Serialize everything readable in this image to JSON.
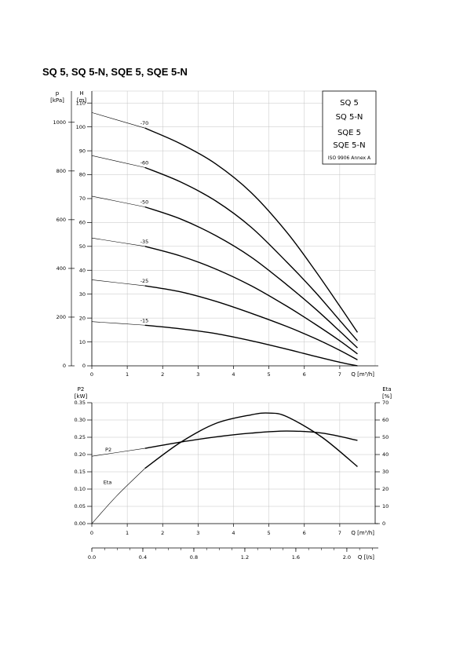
{
  "title": "SQ 5, SQ 5-N, SQE 5, SQE 5-N",
  "legend": {
    "lines": [
      "SQ 5",
      "SQ 5-N",
      "SQE 5",
      "SQE 5-N"
    ],
    "standard": "ISO 9906 Annex A"
  },
  "chart_data": [
    {
      "type": "line",
      "name": "head",
      "x_unit_label": "Q [m³/h]",
      "xlim": [
        0,
        8
      ],
      "x_ticks": [
        "0",
        "1",
        "2",
        "3",
        "4",
        "5",
        "6",
        "7"
      ],
      "y_left_label": [
        "H",
        "[m]"
      ],
      "ylim": [
        0,
        115
      ],
      "y_left_ticks": [
        "0",
        "10",
        "20",
        "30",
        "40",
        "50",
        "60",
        "70",
        "80",
        "90",
        "100",
        "110"
      ],
      "y_right_label": [
        "p",
        "[kPa]"
      ],
      "p_ticks": [
        "0",
        "200",
        "400",
        "600",
        "800",
        "1000"
      ],
      "grid": true,
      "series": [
        {
          "name": "-70",
          "label_x": 1.5,
          "x": [
            0,
            1.5,
            2.5,
            3.5,
            4.5,
            5.5,
            6.3,
            7.0,
            7.5
          ],
          "y": [
            106,
            99.5,
            93,
            84.5,
            72.5,
            56,
            40,
            25,
            14
          ],
          "thin_until": 1.5
        },
        {
          "name": "-60",
          "label_x": 1.5,
          "x": [
            0,
            1.5,
            2.5,
            3.5,
            4.5,
            5.5,
            6.3,
            7.0,
            7.5
          ],
          "y": [
            88,
            83,
            77,
            69,
            58,
            43.5,
            31,
            19,
            10.5
          ],
          "thin_until": 1.5
        },
        {
          "name": "-50",
          "label_x": 1.5,
          "x": [
            0,
            1.5,
            2.5,
            3.5,
            4.5,
            5.5,
            6.3,
            7.0,
            7.5
          ],
          "y": [
            71,
            66.5,
            61.5,
            54.5,
            45.5,
            34,
            24,
            14.5,
            7.5
          ],
          "thin_until": 1.5
        },
        {
          "name": "-35",
          "label_x": 1.5,
          "x": [
            0,
            1.5,
            2.5,
            3.5,
            4.5,
            5.5,
            6.3,
            7.0,
            7.5
          ],
          "y": [
            53.5,
            50,
            46,
            40.5,
            33.5,
            25,
            17.5,
            10.5,
            5
          ],
          "thin_until": 1.5
        },
        {
          "name": "-25",
          "label_x": 1.5,
          "x": [
            0,
            1.5,
            2.5,
            3.5,
            4.5,
            5.5,
            6.3,
            7.0,
            7.5
          ],
          "y": [
            36,
            33.5,
            31,
            27,
            22,
            16.5,
            11.5,
            6.5,
            2.5
          ],
          "thin_until": 1.5
        },
        {
          "name": "-15",
          "label_x": 1.5,
          "x": [
            0,
            1.5,
            2.5,
            3.5,
            4.5,
            5.5,
            6.3,
            7.0,
            7.5
          ],
          "y": [
            18.5,
            17,
            15.5,
            13.5,
            10.5,
            7,
            4,
            1.5,
            0
          ],
          "thin_until": 1.5
        }
      ]
    },
    {
      "type": "line",
      "name": "power-efficiency",
      "x_unit_label": "Q [m³/h]",
      "xlim": [
        0,
        8
      ],
      "x_ticks": [
        "0",
        "1",
        "2",
        "3",
        "4",
        "5",
        "6",
        "7"
      ],
      "y_left_label": [
        "P2",
        "[kW]"
      ],
      "ylim": [
        0,
        0.35
      ],
      "y_left_ticks": [
        "0.00",
        "0.05",
        "0.10",
        "0.15",
        "0.20",
        "0.25",
        "0.30",
        "0.35"
      ],
      "y_right_label": [
        "Eta",
        "[%]"
      ],
      "y_right_lim": [
        0,
        70
      ],
      "y_right_ticks": [
        "0",
        "10",
        "20",
        "30",
        "40",
        "50",
        "60",
        "70"
      ],
      "grid": true,
      "series": [
        {
          "name": "P2",
          "axis": "left",
          "label_x": 0.4,
          "x": [
            0,
            1.5,
            2.5,
            3.5,
            4.5,
            5.5,
            6.5,
            7.5
          ],
          "y": [
            0.195,
            0.218,
            0.236,
            0.251,
            0.262,
            0.268,
            0.262,
            0.241
          ],
          "thin_until": 1.5
        },
        {
          "name": "Eta",
          "axis": "right",
          "label_x": 0.35,
          "x": [
            0,
            0.7,
            1.5,
            2.5,
            3.5,
            4.5,
            5.0,
            5.5,
            6.5,
            7.5
          ],
          "y": [
            0,
            16,
            32,
            47,
            58,
            63,
            64,
            62,
            50,
            33
          ],
          "thin_until": 1.5
        }
      ]
    }
  ],
  "secondary_x_axis": {
    "label": "Q [l/s]",
    "ticks": [
      "0.0",
      "0.4",
      "0.8",
      "1.2",
      "1.6",
      "2.0"
    ],
    "values": [
      0,
      0.4,
      0.8,
      1.2,
      1.6,
      2.0
    ]
  }
}
